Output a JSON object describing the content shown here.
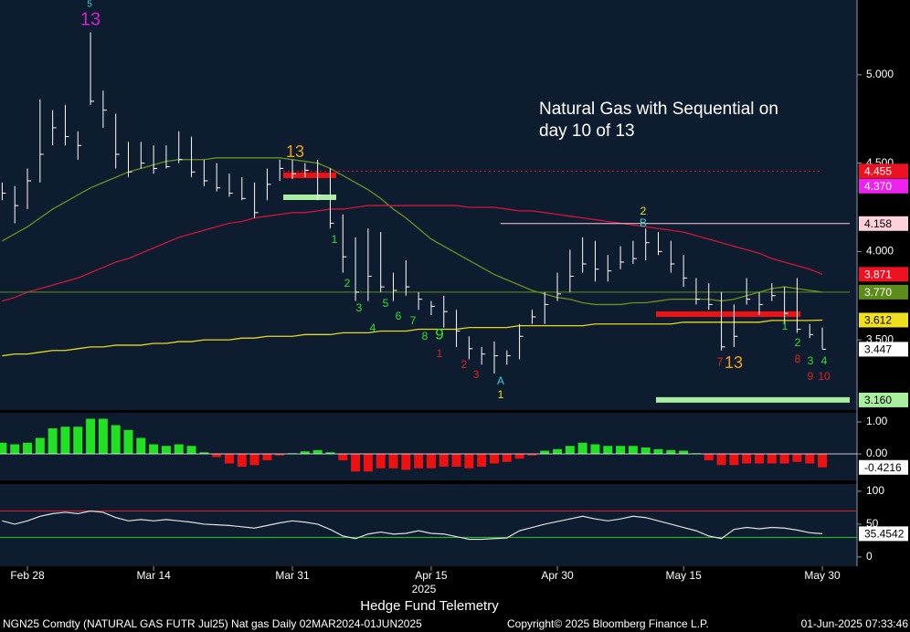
{
  "chart_data": [
    {
      "type": "ohlc",
      "categories": [
        null,
        null,
        "Feb 28",
        null,
        null,
        null,
        null,
        null,
        null,
        null,
        null,
        null,
        "Mar 14",
        null,
        null,
        null,
        null,
        null,
        null,
        null,
        null,
        null,
        null,
        "Mar 31",
        null,
        null,
        null,
        null,
        null,
        null,
        null,
        null,
        null,
        null,
        "Apr 15",
        null,
        null,
        null,
        null,
        null,
        null,
        null,
        null,
        null,
        "Apr 30",
        null,
        null,
        null,
        null,
        null,
        null,
        null,
        null,
        null,
        "May 15",
        null,
        null,
        null,
        null,
        null,
        null,
        null,
        null,
        null,
        null,
        "May 30"
      ],
      "xlabel": "2025",
      "high": [
        4.39,
        4.37,
        4.47,
        4.86,
        4.8,
        4.83,
        4.68,
        5.24,
        4.91,
        4.78,
        4.62,
        4.62,
        4.6,
        4.6,
        4.68,
        4.65,
        4.52,
        4.5,
        4.44,
        4.42,
        4.39,
        4.47,
        4.52,
        4.52,
        4.5,
        4.52,
        4.47,
        4.21,
        4.08,
        4.13,
        4.11,
        3.88,
        3.95,
        3.77,
        3.72,
        3.75,
        3.67,
        3.52,
        3.46,
        3.49,
        3.44,
        3.59,
        3.67,
        3.77,
        3.88,
        4.01,
        4.08,
        4.06,
        3.98,
        4.03,
        4.06,
        4.13,
        4.11,
        4.06,
        3.98,
        3.85,
        3.82,
        3.77,
        3.7,
        3.85,
        3.77,
        3.82,
        3.8,
        3.85,
        3.59,
        3.57
      ],
      "low": [
        4.29,
        4.16,
        4.24,
        4.39,
        4.6,
        4.6,
        4.52,
        4.83,
        4.7,
        4.47,
        4.42,
        4.47,
        4.44,
        4.47,
        4.5,
        4.42,
        4.37,
        4.34,
        4.31,
        4.29,
        4.19,
        4.29,
        4.4,
        4.41,
        4.42,
        4.29,
        4.13,
        3.88,
        3.72,
        3.72,
        3.77,
        3.72,
        3.75,
        3.67,
        3.64,
        3.57,
        3.46,
        3.39,
        3.36,
        3.31,
        3.36,
        3.39,
        3.59,
        3.59,
        3.72,
        3.77,
        3.88,
        3.83,
        3.83,
        3.9,
        3.93,
        3.95,
        3.98,
        3.88,
        3.8,
        3.7,
        3.67,
        3.44,
        3.46,
        3.7,
        3.64,
        3.72,
        3.59,
        3.54,
        3.51,
        3.45
      ],
      "close": [
        4.33,
        4.26,
        4.4,
        4.55,
        4.7,
        4.65,
        4.6,
        4.85,
        4.8,
        4.55,
        4.45,
        4.5,
        4.47,
        4.48,
        4.52,
        4.45,
        4.4,
        4.36,
        4.33,
        4.3,
        4.22,
        4.38,
        4.47,
        4.44,
        4.46,
        4.32,
        4.16,
        3.97,
        3.77,
        3.86,
        3.8,
        3.78,
        3.8,
        3.73,
        3.69,
        3.66,
        3.55,
        3.45,
        3.42,
        3.41,
        3.41,
        3.52,
        3.63,
        3.7,
        3.76,
        3.86,
        3.93,
        3.9,
        3.89,
        3.94,
        3.96,
        4.05,
        4.0,
        3.93,
        3.85,
        3.73,
        3.7,
        3.46,
        3.52,
        3.73,
        3.7,
        3.75,
        3.65,
        3.56,
        3.53,
        3.447
      ],
      "color": "#ffffff",
      "moving_averages": [
        {
          "color": "#6f8f1f",
          "values": [
            4.06,
            4.1,
            4.14,
            4.19,
            4.24,
            4.28,
            4.32,
            4.36,
            4.39,
            4.42,
            4.45,
            4.47,
            4.49,
            4.51,
            4.52,
            4.52,
            4.52,
            4.53,
            4.53,
            4.53,
            4.53,
            4.53,
            4.53,
            4.52,
            4.51,
            4.5,
            4.47,
            4.43,
            4.39,
            4.35,
            4.3,
            4.24,
            4.19,
            4.13,
            4.07,
            4.03,
            3.99,
            3.95,
            3.91,
            3.87,
            3.84,
            3.81,
            3.78,
            3.76,
            3.74,
            3.73,
            3.71,
            3.7,
            3.7,
            3.7,
            3.71,
            3.71,
            3.72,
            3.73,
            3.73,
            3.73,
            3.73,
            3.72,
            3.73,
            3.75,
            3.77,
            3.79,
            3.8,
            3.79,
            3.78,
            3.77
          ]
        },
        {
          "color": "#d2143c",
          "values": [
            3.72,
            3.74,
            3.77,
            3.79,
            3.81,
            3.83,
            3.85,
            3.88,
            3.91,
            3.94,
            3.96,
            3.99,
            4.02,
            4.05,
            4.08,
            4.1,
            4.12,
            4.14,
            4.16,
            4.17,
            4.19,
            4.2,
            4.21,
            4.22,
            4.22,
            4.23,
            4.24,
            4.24,
            4.25,
            4.26,
            4.26,
            4.26,
            4.26,
            4.26,
            4.26,
            4.26,
            4.26,
            4.25,
            4.25,
            4.25,
            4.24,
            4.23,
            4.23,
            4.22,
            4.21,
            4.2,
            4.19,
            4.18,
            4.17,
            4.16,
            4.15,
            4.14,
            4.13,
            4.12,
            4.11,
            4.09,
            4.07,
            4.05,
            4.03,
            4.01,
            3.99,
            3.96,
            3.94,
            3.92,
            3.9,
            3.871
          ]
        },
        {
          "color": "#e8d81c",
          "values": [
            3.41,
            3.42,
            3.42,
            3.43,
            3.44,
            3.44,
            3.45,
            3.46,
            3.46,
            3.47,
            3.47,
            3.47,
            3.48,
            3.48,
            3.49,
            3.49,
            3.5,
            3.5,
            3.5,
            3.51,
            3.51,
            3.52,
            3.52,
            3.52,
            3.53,
            3.53,
            3.53,
            3.54,
            3.54,
            3.54,
            3.55,
            3.55,
            3.55,
            3.56,
            3.56,
            3.56,
            3.56,
            3.57,
            3.57,
            3.57,
            3.57,
            3.58,
            3.58,
            3.58,
            3.58,
            3.58,
            3.58,
            3.59,
            3.59,
            3.59,
            3.59,
            3.59,
            3.59,
            3.59,
            3.6,
            3.6,
            3.6,
            3.6,
            3.6,
            3.6,
            3.6,
            3.61,
            3.61,
            3.61,
            3.61,
            3.612
          ]
        }
      ],
      "ylim": [
        3.108,
        5.423
      ],
      "yticks": [
        {
          "value": 3.5,
          "label": "3.500"
        },
        {
          "value": 4.0,
          "label": "4.000"
        },
        {
          "value": 4.5,
          "label": "4.500"
        },
        {
          "value": 5.0,
          "label": "5.000"
        }
      ],
      "levels": [
        {
          "value": 4.455,
          "label": "4.455",
          "color": "#ee1122",
          "text_color": "#ffffff"
        },
        {
          "value": 4.37,
          "label": "4.370",
          "color": "#ee22ee",
          "text_color": "#ffffff"
        },
        {
          "value": 4.158,
          "label": "4.158",
          "color": "#ffd0dc",
          "text_color": "#000000"
        },
        {
          "value": 3.871,
          "label": "3.871",
          "color": "#ee1122",
          "text_color": "#ffffff"
        },
        {
          "value": 3.77,
          "label": "3.770",
          "color": "#5e8c1a",
          "text_color": "#ffffff"
        },
        {
          "value": 3.612,
          "label": "3.612",
          "color": "#f0e020",
          "text_color": "#000000"
        },
        {
          "value": 3.16,
          "label": "3.160",
          "color": "#a8f0a0",
          "text_color": "#000000"
        }
      ],
      "note": [
        "Natural Gas with Sequential on",
        "day 10 of 13"
      ],
      "annotations": [
        {
          "text": "5",
          "color": "#40d0d0"
        },
        {
          "text": "13",
          "color": "#d020d0"
        },
        {
          "text": "13",
          "color": "#f0a020"
        },
        {
          "text": "1",
          "color": "#30e030"
        },
        {
          "text": "2",
          "color": "#30e030"
        },
        {
          "text": "3",
          "color": "#30e030"
        },
        {
          "text": "4",
          "color": "#30e030"
        },
        {
          "text": "5",
          "color": "#30e030"
        },
        {
          "text": "6",
          "color": "#30e030"
        },
        {
          "text": "7",
          "color": "#30e030"
        },
        {
          "text": "8",
          "color": "#30e030"
        },
        {
          "text": "9",
          "color": "#30e030"
        },
        {
          "text": "1",
          "color": "#e02020"
        },
        {
          "text": "2",
          "color": "#e02020"
        },
        {
          "text": "3",
          "color": "#e02020"
        },
        {
          "text": "A",
          "color": "#40d0d0"
        },
        {
          "text": "1",
          "color": "#f0e020"
        },
        {
          "text": "2",
          "color": "#f0e020"
        },
        {
          "text": "B",
          "color": "#40d0d0"
        },
        {
          "text": "7",
          "color": "#e02020"
        },
        {
          "text": "13",
          "color": "#f0a020"
        },
        {
          "text": "1",
          "color": "#30e030"
        },
        {
          "text": "2",
          "color": "#30e030"
        },
        {
          "text": "3",
          "color": "#30e030"
        },
        {
          "text": "4",
          "color": "#30e030"
        },
        {
          "text": "8",
          "color": "#e02020"
        },
        {
          "text": "9",
          "color": "#e02020"
        },
        {
          "text": "10",
          "color": "#e02020"
        }
      ]
    },
    {
      "type": "histogram",
      "values": [
        0.35,
        0.3,
        0.35,
        0.5,
        0.8,
        0.85,
        0.85,
        1.1,
        1.1,
        0.9,
        0.75,
        0.5,
        0.3,
        0.25,
        0.3,
        0.25,
        0.05,
        -0.1,
        -0.3,
        -0.4,
        -0.35,
        -0.2,
        -0.05,
        0.02,
        0.08,
        0.12,
        0.05,
        -0.2,
        -0.55,
        -0.55,
        -0.45,
        -0.45,
        -0.5,
        -0.45,
        -0.45,
        -0.4,
        -0.4,
        -0.45,
        -0.4,
        -0.3,
        -0.25,
        -0.15,
        -0.05,
        0.1,
        0.15,
        0.25,
        0.35,
        0.3,
        0.25,
        0.25,
        0.25,
        0.2,
        0.15,
        0.12,
        0.1,
        0.02,
        -0.2,
        -0.35,
        -0.35,
        -0.3,
        -0.3,
        -0.3,
        -0.3,
        -0.25,
        -0.3,
        -0.4216
      ],
      "colors": {
        "positive": "#22e022",
        "negative": "#ee1111"
      },
      "ylim": [
        -0.8,
        1.286
      ],
      "yticks": [
        {
          "value": 0,
          "label": "0.00"
        },
        {
          "value": 1,
          "label": "1.00"
        }
      ]
    },
    {
      "type": "line",
      "values": [
        55,
        50,
        55,
        62,
        66,
        68,
        66,
        70,
        68,
        60,
        55,
        57,
        55,
        57,
        55,
        53,
        50,
        49,
        48,
        46,
        44,
        48,
        52,
        55,
        53,
        50,
        42,
        32,
        28,
        35,
        38,
        35,
        36,
        40,
        36,
        35,
        31,
        27,
        27,
        28,
        29,
        40,
        45,
        50,
        54,
        58,
        62,
        58,
        55,
        58,
        62,
        60,
        55,
        50,
        45,
        40,
        32,
        28,
        42,
        45,
        43,
        45,
        44,
        41,
        37,
        35.4542
      ],
      "color": "#e0e0e0",
      "levels": [
        {
          "value": 70,
          "color": "#e02020"
        },
        {
          "value": 30,
          "color": "#20d020"
        }
      ],
      "ylim": [
        -14,
        111
      ],
      "yticks": [
        0,
        50,
        100
      ]
    }
  ],
  "footer": {
    "title": "Hedge Fund Telemetry",
    "security": "NGN25 Comdty (NATURAL GAS FUTR  Jul25) Nat gas  Daily 02MAR2024-01JUN2025",
    "copyright": "Copyright© 2025 Bloomberg Finance L.P.",
    "timestamp": "01-Jun-2025 07:33:46"
  }
}
